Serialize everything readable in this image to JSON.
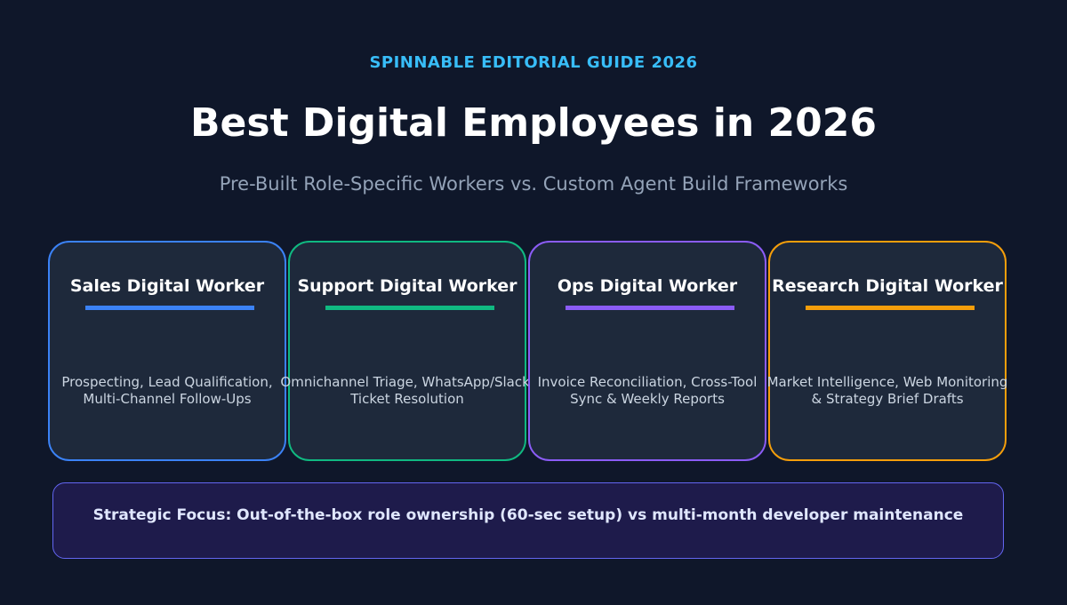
{
  "header": {
    "eyebrow": "SPINNABLE EDITORIAL GUIDE 2026",
    "title": "Best Digital Employees in 2026",
    "subtitle": "Pre-Built Role-Specific Workers vs. Custom Agent Build Frameworks"
  },
  "cards": [
    {
      "title": "Sales Digital Worker",
      "desc_line1": "Prospecting, Lead Qualification,",
      "desc_line2": "Multi-Channel Follow-Ups",
      "color": "#3b82f6"
    },
    {
      "title": "Support Digital Worker",
      "desc_line1": "Omnichannel Triage, WhatsApp/Slack,",
      "desc_line2": "Ticket Resolution",
      "color": "#10b981"
    },
    {
      "title": "Ops Digital Worker",
      "desc_line1": "Invoice Reconciliation, Cross-Tool",
      "desc_line2": "Sync & Weekly Reports",
      "color": "#8b5cf6"
    },
    {
      "title": "Research Digital Worker",
      "desc_line1": "Market Intelligence, Web Monitoring",
      "desc_line2": "& Strategy Brief Drafts",
      "color": "#f59e0b"
    }
  ],
  "focus": {
    "text": "Strategic Focus: Out-of-the-box role ownership (60-sec setup) vs multi-month developer maintenance"
  }
}
